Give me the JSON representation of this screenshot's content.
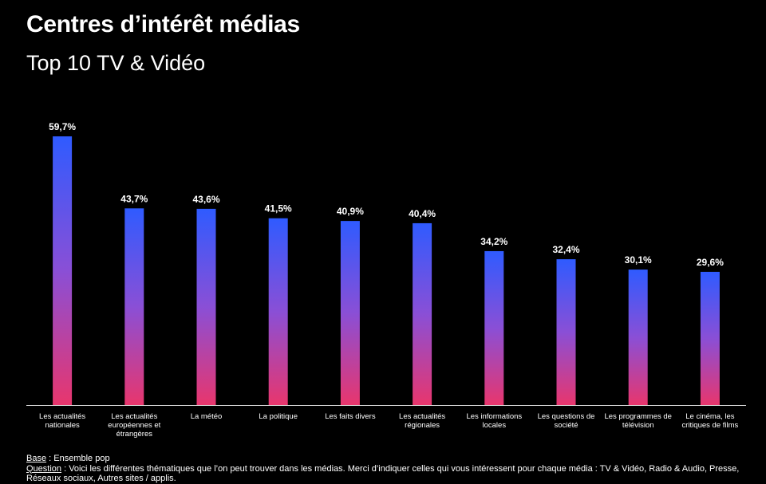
{
  "header": {
    "title": "Centres d’intérêt médias",
    "subtitle": "Top 10 TV & Vidéo"
  },
  "footer": {
    "base_key": "Base",
    "base_text": " : Ensemble pop",
    "question_key": "Question",
    "question_text": " : Voici les différentes thématiques que l’on peut trouver dans les médias. Merci d’indiquer celles qui vous intéressent pour chaque média : TV & Vidéo, Radio & Audio, Presse, Réseaux sociaux, Autres sites / applis."
  },
  "colors": {
    "background": "#000000",
    "bar_top": "#2f5bff",
    "bar_mid": "#8a4fd6",
    "bar_bottom": "#e8366d",
    "text": "#ffffff"
  },
  "chart_data": {
    "type": "bar",
    "categories": [
      [
        "Les actualités",
        "nationales"
      ],
      [
        "Les actualités",
        "européennes et",
        "étrangères"
      ],
      [
        "La météo"
      ],
      [
        "La politique"
      ],
      [
        "Les faits divers"
      ],
      [
        "Les actualités",
        "régionales"
      ],
      [
        "Les informations",
        "locales"
      ],
      [
        "Les questions de",
        "société"
      ],
      [
        "Les programmes de",
        "télévision"
      ],
      [
        "Le cinéma, les",
        "critiques de films"
      ]
    ],
    "values": [
      59.7,
      43.7,
      43.6,
      41.5,
      40.9,
      40.4,
      34.2,
      32.4,
      30.1,
      29.6
    ],
    "value_labels": [
      "59,7%",
      "43,7%",
      "43,6%",
      "41,5%",
      "40,9%",
      "40,4%",
      "34,2%",
      "32,4%",
      "30,1%",
      "29,6%"
    ],
    "ylim": [
      0,
      60
    ],
    "grid": false,
    "legend": "none"
  }
}
